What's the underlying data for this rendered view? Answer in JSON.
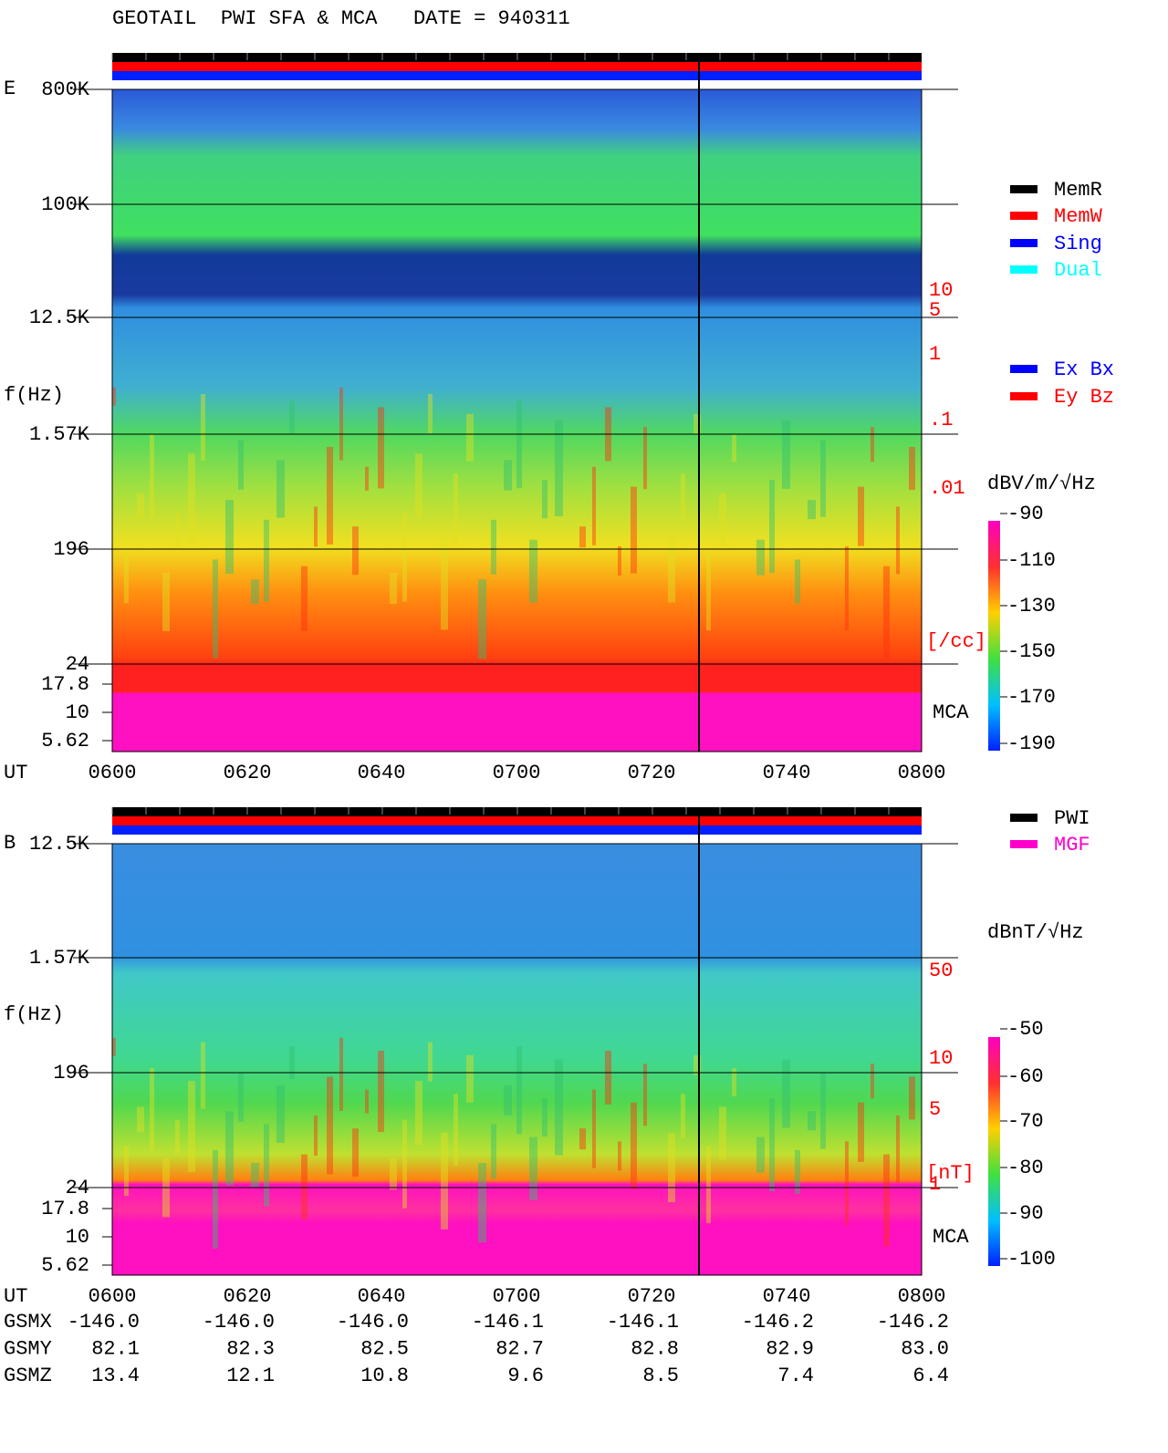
{
  "header": {
    "title": "GEOTAIL  PWI SFA & MCA   DATE = 940311"
  },
  "panels": [
    {
      "label": "E",
      "y_axis_label": "f(Hz)",
      "y_ticks": [
        "800K",
        "100K",
        "12.5K",
        "1.57K",
        "196",
        "24",
        "17.8",
        "10",
        "5.62"
      ],
      "right_labels": [
        "10",
        "5",
        "1",
        ".1",
        ".01",
        "[/cc]"
      ],
      "mca": "MCA",
      "x_axis_label": "UT",
      "x_ticks": [
        "0600",
        "0620",
        "0640",
        "0700",
        "0720",
        "0740",
        "0800"
      ],
      "legend": [
        {
          "name": "MemR",
          "color": "#000000"
        },
        {
          "name": "MemW",
          "color": "#ff0000"
        },
        {
          "name": "Sing",
          "color": "#0000ff"
        },
        {
          "name": "Dual",
          "color": "#00ffff"
        },
        {
          "name": "Ex Bx",
          "color": "#0000ff"
        },
        {
          "name": "Ey Bz",
          "color": "#ff0000"
        }
      ],
      "colorbar": {
        "unit": "dBV/m/√Hz",
        "ticks": [
          "-90",
          "-110",
          "-130",
          "-150",
          "-170",
          "-190"
        ]
      }
    },
    {
      "label": "B",
      "y_axis_label": "f(Hz)",
      "y_ticks": [
        "12.5K",
        "1.57K",
        "196",
        "24",
        "17.8",
        "10",
        "5.62"
      ],
      "right_labels": [
        "50",
        "10",
        "5",
        "1",
        "[nT]"
      ],
      "mca": "MCA",
      "x_axis_label": "UT",
      "x_ticks": [
        "0600",
        "0620",
        "0640",
        "0700",
        "0720",
        "0740",
        "0800"
      ],
      "legend": [
        {
          "name": "PWI",
          "color": "#000000"
        },
        {
          "name": "MGF",
          "color": "#ff00cc"
        }
      ],
      "colorbar": {
        "unit": "dBnT/√Hz",
        "ticks": [
          "-50",
          "-60",
          "-70",
          "-80",
          "-90",
          "-100"
        ]
      }
    }
  ],
  "orbit": {
    "rows": [
      {
        "label": "GSMX",
        "values": [
          "-146.0",
          "-146.0",
          "-146.0",
          "-146.1",
          "-146.1",
          "-146.2",
          "-146.2"
        ]
      },
      {
        "label": "GSMY",
        "values": [
          "82.1",
          "82.3",
          "82.5",
          "82.7",
          "82.8",
          "82.9",
          "83.0"
        ]
      },
      {
        "label": "GSMZ",
        "values": [
          "13.4",
          "12.1",
          "10.8",
          "9.6",
          "8.5",
          "7.4",
          "6.4"
        ]
      }
    ]
  }
}
